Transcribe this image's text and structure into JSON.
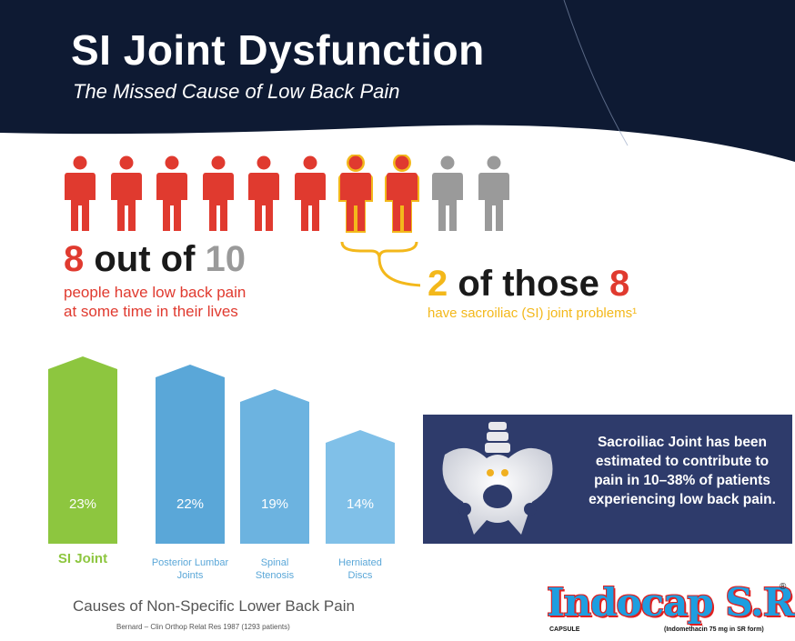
{
  "header": {
    "title": "SI Joint Dysfunction",
    "subtitle": "The Missed Cause of Low Back Pain"
  },
  "people": {
    "total": 10,
    "with_back_pain": 8,
    "with_si_problems": 2,
    "colors": {
      "pain": "#e03a2f",
      "si": "#f3b81b",
      "none": "#9a9a9a"
    }
  },
  "stat_left": {
    "num": "8",
    "mid": " out of ",
    "den": "10",
    "line1": "people have low back pain",
    "line2": "at some time in their lives"
  },
  "stat_right": {
    "num": "2",
    "mid": " of those ",
    "den": "8",
    "text": "have sacroiliac (SI) joint problems¹"
  },
  "chart_data": {
    "type": "bar",
    "title": "Causes of Non-Specific Lower Back Pain",
    "source": "Bernard – Clin Orthop Relat Res 1987 (1293 patients)",
    "categories": [
      "SI Joint",
      "Posterior Lumbar Joints",
      "Spinal Stenosis",
      "Herniated Discs"
    ],
    "values": [
      23,
      22,
      19,
      14
    ],
    "value_labels": [
      "23%",
      "22%",
      "19%",
      "14%"
    ],
    "label_lines": [
      [
        "SI Joint"
      ],
      [
        "Posterior Lumbar",
        "Joints"
      ],
      [
        "Spinal",
        "Stenosis"
      ],
      [
        "Herniated",
        "Discs"
      ]
    ],
    "colors": [
      "#8dc63f",
      "#5aa7d8",
      "#6cb3e0",
      "#80c0e8"
    ],
    "ylim": [
      0,
      23
    ]
  },
  "info_box": {
    "text": "Sacroiliac Joint has been estimated to contribute to pain in 10–38% of patients experiencing low back pain."
  },
  "brand": {
    "name": "Indocap S.R.",
    "registered": "®",
    "form": "CAPSULE",
    "composition": "(Indomethacin 75 mg in SR form)"
  }
}
